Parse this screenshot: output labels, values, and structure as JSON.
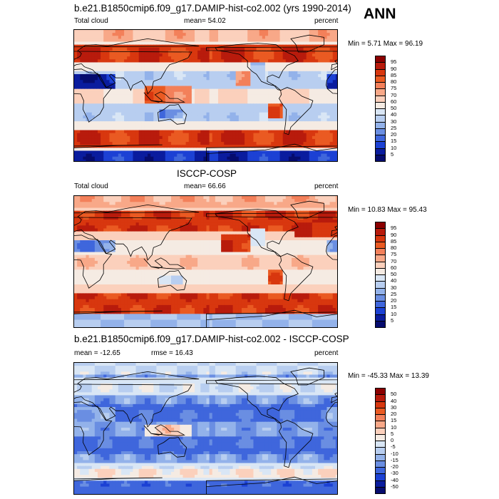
{
  "season": "ANN",
  "panels": [
    {
      "title": "b.e21.B1850cmip6.f09_g17.DAMIP-hist-co2.002 (yrs 1990-2014)",
      "left_label": "Total cloud",
      "center_label": "mean=  54.02",
      "right_label": "percent",
      "stats": "Min =   5.71 Max =  96.19",
      "colorbar_labels": [
        "95",
        "90",
        "85",
        "80",
        "75",
        "70",
        "60",
        "50",
        "40",
        "30",
        "25",
        "20",
        "15",
        "10",
        "5"
      ],
      "colorbar_colors": [
        "#8b0000",
        "#b81b0c",
        "#d8370f",
        "#ea5a22",
        "#f3805a",
        "#f8a888",
        "#fbd0bc",
        "#f5ebe3",
        "#d9e6f5",
        "#b8cef0",
        "#93b2ea",
        "#6a8ee2",
        "#3f66dc",
        "#1c41d4",
        "#0a1c9e",
        "#060c6e"
      ],
      "pattern": "model"
    },
    {
      "title": "ISCCP-COSP",
      "left_label": "Total cloud",
      "center_label": "mean=  66.66",
      "right_label": "percent",
      "stats": "Min =  10.83 Max =  95.43",
      "colorbar_labels": [
        "95",
        "90",
        "85",
        "80",
        "75",
        "70",
        "60",
        "50",
        "40",
        "30",
        "25",
        "20",
        "15",
        "10",
        "5"
      ],
      "colorbar_colors": [
        "#8b0000",
        "#b81b0c",
        "#d8370f",
        "#ea5a22",
        "#f3805a",
        "#f8a888",
        "#fbd0bc",
        "#f5ebe3",
        "#d9e6f5",
        "#b8cef0",
        "#93b2ea",
        "#6a8ee2",
        "#3f66dc",
        "#1c41d4",
        "#0a1c9e",
        "#060c6e"
      ],
      "pattern": "obs"
    },
    {
      "title": "b.e21.B1850cmip6.f09_g17.DAMIP-hist-co2.002 - ISCCP-COSP",
      "left_label": "mean = -12.65",
      "center_label": "rmse =  16.43",
      "right_label": "percent",
      "stats": "Min = -45.33 Max =  13.39",
      "colorbar_labels": [
        "50",
        "40",
        "30",
        "20",
        "15",
        "10",
        "5",
        "0",
        "-5",
        "-10",
        "-15",
        "-20",
        "-30",
        "-40",
        "-50"
      ],
      "colorbar_colors": [
        "#8b0000",
        "#b81b0c",
        "#d8370f",
        "#ea5a22",
        "#f3805a",
        "#f8a888",
        "#fbd0bc",
        "#f5ebe3",
        "#d9e6f5",
        "#b8cef0",
        "#93b2ea",
        "#6a8ee2",
        "#3f66dc",
        "#1c41d4",
        "#0a1c9e",
        "#060c6e"
      ],
      "pattern": "diff"
    }
  ]
}
